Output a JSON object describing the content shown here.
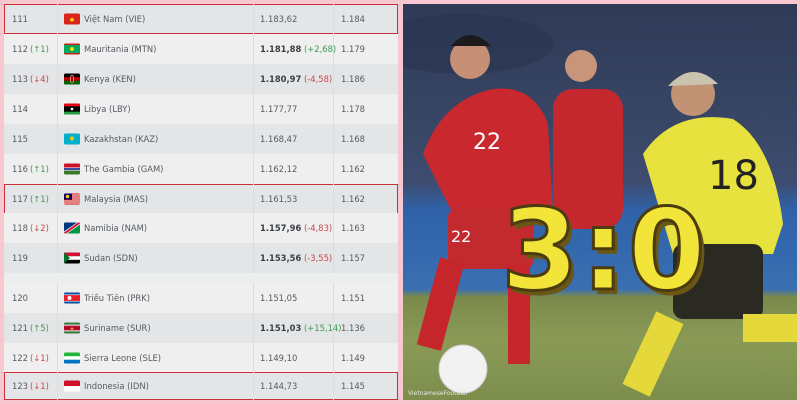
{
  "rankings": [
    {
      "rank": "111",
      "change": "",
      "dir": "",
      "flag": "vietnam-flag",
      "name": "Việt Nam (VIE)",
      "points": "1.183,62",
      "delta": "",
      "prev": "1.184",
      "highlight": true
    },
    {
      "rank": "112",
      "change": "(↑1)",
      "dir": "up",
      "flag": "mauritania-flag",
      "name": "Mauritania (MTN)",
      "points": "1.181,88",
      "delta": "(+2,68)",
      "prev": "1.179"
    },
    {
      "rank": "113",
      "change": "(↓4)",
      "dir": "down",
      "flag": "kenya-flag",
      "name": "Kenya (KEN)",
      "points": "1.180,97",
      "delta": "(-4,58)",
      "prev": "1.186"
    },
    {
      "rank": "114",
      "change": "",
      "dir": "",
      "flag": "libya-flag",
      "name": "Libya (LBY)",
      "points": "1.177,77",
      "delta": "",
      "prev": "1.178"
    },
    {
      "rank": "115",
      "change": "",
      "dir": "",
      "flag": "kazakhstan-flag",
      "name": "Kazakhstan (KAZ)",
      "points": "1.168,47",
      "delta": "",
      "prev": "1.168"
    },
    {
      "rank": "116",
      "change": "(↑1)",
      "dir": "up",
      "flag": "gambia-flag",
      "name": "The Gambia (GAM)",
      "points": "1.162,12",
      "delta": "",
      "prev": "1.162"
    },
    {
      "rank": "117",
      "change": "(↑1)",
      "dir": "up",
      "flag": "malaysia-flag",
      "name": "Malaysia (MAS)",
      "points": "1.161,53",
      "delta": "",
      "prev": "1.162",
      "highlight": true
    },
    {
      "rank": "118",
      "change": "(↓2)",
      "dir": "down",
      "flag": "namibia-flag",
      "name": "Namibia (NAM)",
      "points": "1.157,96",
      "delta": "(-4,83)",
      "prev": "1.163"
    },
    {
      "rank": "119",
      "change": "",
      "dir": "",
      "flag": "sudan-flag",
      "name": "Sudan (SDN)",
      "points": "1.153,56",
      "delta": "(-3,55)",
      "prev": "1.157"
    },
    {
      "rank": "120",
      "change": "",
      "dir": "",
      "flag": "north-korea-flag",
      "name": "Triều Tiên (PRK)",
      "points": "1.151,05",
      "delta": "",
      "prev": "1.151"
    },
    {
      "rank": "121",
      "change": "(↑5)",
      "dir": "up",
      "flag": "suriname-flag",
      "name": "Suriname (SUR)",
      "points": "1.151,03",
      "delta": "(+15,14)",
      "prev": "1.136"
    },
    {
      "rank": "122",
      "change": "(↓1)",
      "dir": "down",
      "flag": "sierra-leone-flag",
      "name": "Sierra Leone (SLE)",
      "points": "1.149,10",
      "delta": "",
      "prev": "1.149"
    },
    {
      "rank": "123",
      "change": "(↓1)",
      "dir": "down",
      "flag": "indonesia-flag",
      "name": "Indonesia (IDN)",
      "points": "1.144,73",
      "delta": "",
      "prev": "1.145",
      "highlight": true
    }
  ],
  "photo": {
    "score": "3:0",
    "watermark": "VietnameseFootball"
  },
  "colors": {
    "highlight_border": "#c8303a",
    "up": "#3f9a55",
    "down": "#c8484f",
    "frame": "#f7c8d0"
  }
}
